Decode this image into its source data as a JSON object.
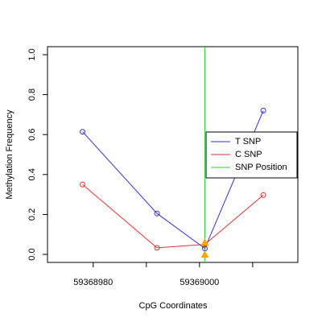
{
  "chart_data": {
    "type": "line",
    "xlabel": "CpG Coordinates",
    "ylabel": "Methylation Frequency",
    "x": [
      59368978,
      59368992,
      59369001,
      59369012
    ],
    "series": [
      {
        "name": "T SNP",
        "color": "#3333cc",
        "values": [
          0.614,
          0.205,
          0.03,
          0.72
        ]
      },
      {
        "name": "C SNP",
        "color": "#dd3333",
        "values": [
          0.35,
          0.033,
          0.05,
          0.297
        ]
      }
    ],
    "snp_position": {
      "name": "SNP Position",
      "x": 59369001,
      "color": "#33cc33"
    },
    "snp_markers": {
      "x": 59369001,
      "values": [
        0.06,
        0.0
      ],
      "color": "#ffa500"
    },
    "xlim": [
      59368971.4,
      59369018.5
    ],
    "ylim": [
      -0.04,
      1.04
    ],
    "xticks": [
      59368980,
      {
        "value": 59368990
      },
      59369000,
      {
        "value": 59369010
      }
    ],
    "yticks": [
      {
        "value": 0,
        "label": "0.0"
      },
      0.2,
      0.4,
      0.6,
      0.8,
      {
        "value": 1,
        "label": "1.0"
      }
    ],
    "legend": "right"
  }
}
